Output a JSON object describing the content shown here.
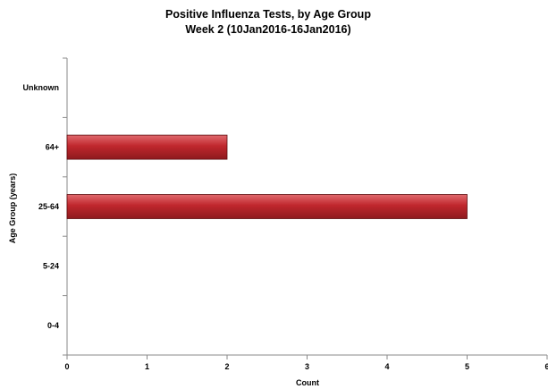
{
  "chart_data": {
    "type": "bar",
    "orientation": "horizontal",
    "title": "Positive Influenza Tests, by Age Group",
    "subtitle": "Week 2 (10Jan2016-16Jan2016)",
    "xlabel": "Count",
    "ylabel": "Age Group (years)",
    "categories": [
      "0-4",
      "5-24",
      "25-64",
      "64+",
      "Unknown"
    ],
    "values": [
      0,
      0,
      5,
      2,
      0
    ],
    "xlim": [
      0,
      6
    ],
    "xticks": [
      0,
      1,
      2,
      3,
      4,
      5,
      6
    ],
    "grid": false,
    "legend": "none",
    "bar_color": "#c0272d"
  }
}
